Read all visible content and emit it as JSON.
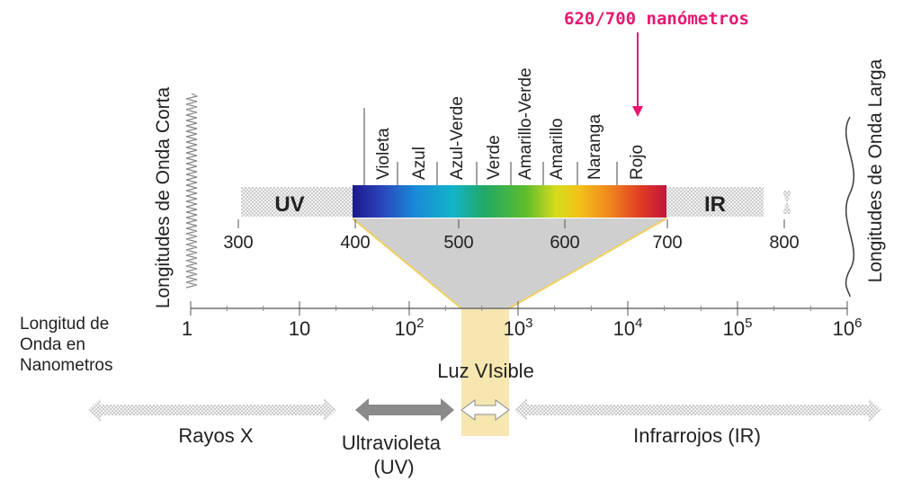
{
  "annotation": {
    "label": "620/700 nanómetros",
    "color": "#e8166f"
  },
  "left_vertical_label": "Longitudes de Onda Corta",
  "right_vertical_label": "Longitudes de Onda Larga",
  "visible_band": {
    "labels": [
      "Violeta",
      "Azul",
      "Azul-Verde",
      "Verde",
      "Amarillo-Verde",
      "Amarillo",
      "Naranga",
      "Rojo"
    ],
    "uv_label": "UV",
    "ir_label": "IR",
    "ticks": [
      "300",
      "400",
      "500",
      "600",
      "700",
      "800"
    ]
  },
  "log_axis": {
    "title_lines": [
      "Longitud de",
      "Onda en",
      "Nanometros"
    ],
    "ticks": [
      {
        "base": "1",
        "exp": ""
      },
      {
        "base": "10",
        "exp": ""
      },
      {
        "base": "10",
        "exp": "2"
      },
      {
        "base": "10",
        "exp": "3"
      },
      {
        "base": "10",
        "exp": "4"
      },
      {
        "base": "10",
        "exp": "5"
      },
      {
        "base": "10",
        "exp": "6"
      }
    ]
  },
  "regions": {
    "visible_label": "Luz VIsible",
    "xray_label": "Rayos X",
    "uv_lines": [
      "Ultravioleta",
      "(UV)"
    ],
    "ir_label": "Infrarrojos (IR)"
  },
  "colors": {
    "annotation": "#e8166f",
    "funnel_fill": "#cfcfcf",
    "funnel_edge": "#f0d060",
    "visible_column": "#f6e6b0",
    "hatch_band": "#cfcfcf",
    "uv_arrow": "#8a8a8a"
  }
}
